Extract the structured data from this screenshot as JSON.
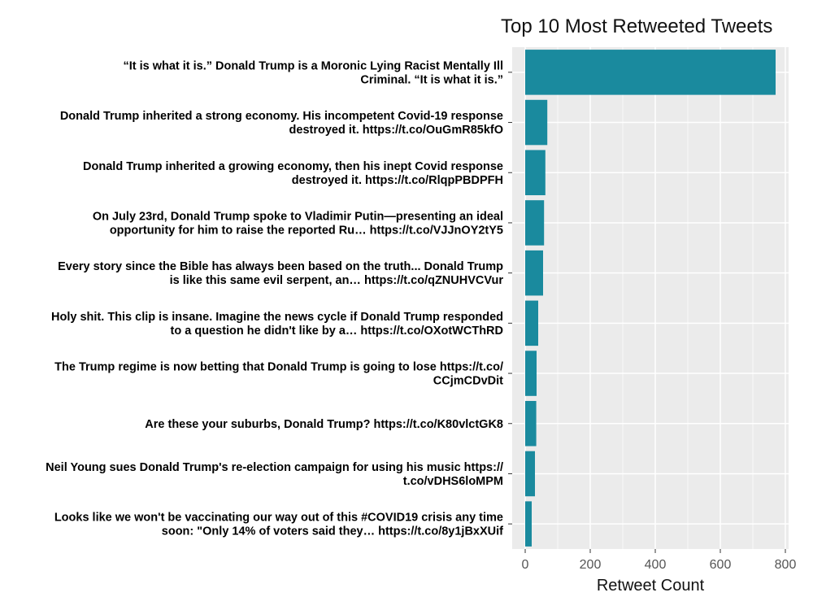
{
  "chart_data": {
    "type": "bar",
    "orientation": "horizontal",
    "title": "Top 10 Most Retweeted Tweets",
    "xlabel": "Retweet Count",
    "ylabel": "",
    "xlim": [
      0,
      810
    ],
    "xticks": [
      0,
      200,
      400,
      600,
      800
    ],
    "xtick_labels": [
      "0",
      "200",
      "400",
      "600",
      "800"
    ],
    "bar_color": "#1a8a9e",
    "panel_color": "#ebebeb",
    "grid": true,
    "categories": [
      [
        "“It is what it is.” Donald Trump is a Moronic Lying Racist Mentally Ill",
        "Criminal. “It is what it is.”"
      ],
      [
        "Donald Trump inherited a strong economy. His incompetent Covid-19 response",
        "destroyed it. https://t.co/OuGmR85kfO"
      ],
      [
        "Donald Trump inherited a growing economy, then his inept Covid response",
        "destroyed it. https://t.co/RlqpPBDPFH"
      ],
      [
        "On July 23rd, Donald Trump spoke to Vladimir Putin—presenting an ideal",
        "opportunity for him to raise the reported Ru… https://t.co/VJJnOY2tY5"
      ],
      [
        "Every story since the Bible has always been based on the truth... Donald Trump",
        "is like this same evil serpent, an… https://t.co/qZNUHVCVur"
      ],
      [
        "Holy shit. This clip is insane. Imagine the news cycle if Donald Trump responded",
        "to a question he didn't like by a… https://t.co/OXotWCThRD"
      ],
      [
        "The Trump regime is now betting that Donald Trump is going to lose https://t.co/",
        "CCjmCDvDit"
      ],
      [
        "Are these your suburbs, Donald Trump? https://t.co/K80vlctGK8"
      ],
      [
        "Neil Young sues Donald Trump's re-election campaign for using his music https://",
        "t.co/vDHS6loMPM"
      ],
      [
        "Looks like we won't be vaccinating our way out of this #COVID19 crisis any time",
        "soon: \"Only 14% of voters said they… https://t.co/8y1jBxXUif"
      ]
    ],
    "values": [
      770,
      68,
      62,
      58,
      55,
      40,
      35,
      34,
      30,
      20
    ]
  }
}
